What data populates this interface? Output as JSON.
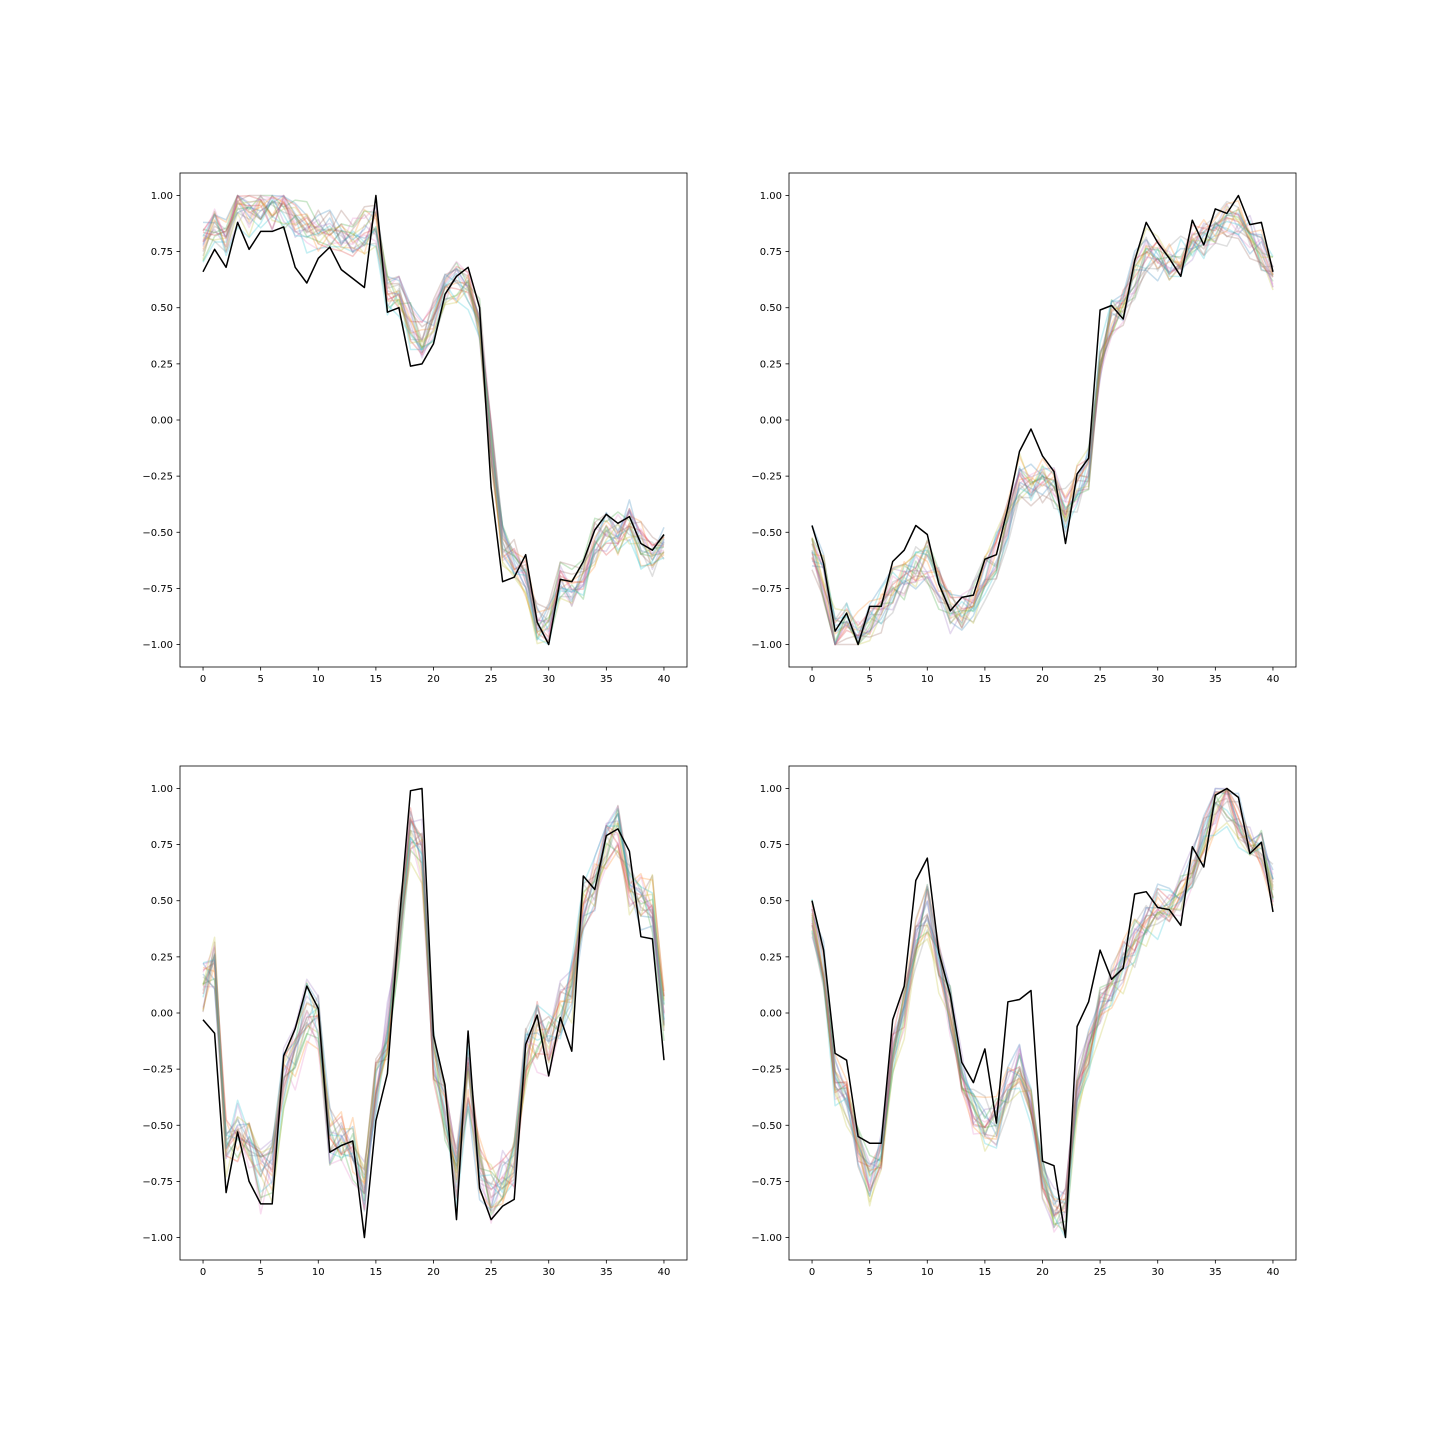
{
  "chart_data": [
    {
      "type": "line",
      "title": "",
      "xlabel": "",
      "ylabel": "",
      "xlim": [
        -2,
        42
      ],
      "ylim": [
        -1.1,
        1.1
      ],
      "xticks": [
        0,
        5,
        10,
        15,
        20,
        25,
        30,
        35,
        40
      ],
      "yticks": [
        -1.0,
        -0.75,
        -0.5,
        -0.25,
        0.0,
        0.25,
        0.5,
        0.75,
        1.0
      ],
      "xtick_labels": [
        "0",
        "5",
        "10",
        "15",
        "20",
        "25",
        "30",
        "35",
        "40"
      ],
      "ytick_labels": [
        "−1.00",
        "−0.75",
        "−0.50",
        "−0.25",
        "0.00",
        "0.25",
        "0.50",
        "0.75",
        "1.00"
      ],
      "grid": false,
      "legend": "none",
      "main_series_color": "#000000",
      "ensemble_count": 20,
      "ensemble_opacity": 0.25,
      "ensemble_spread": 0.08,
      "main_series": [
        0.66,
        0.76,
        0.68,
        0.88,
        0.76,
        0.84,
        0.84,
        0.86,
        0.68,
        0.61,
        0.72,
        0.77,
        0.67,
        0.63,
        0.59,
        1.0,
        0.48,
        0.5,
        0.24,
        0.25,
        0.34,
        0.56,
        0.64,
        0.68,
        0.5,
        -0.3,
        -0.72,
        -0.7,
        -0.6,
        -0.9,
        -1.0,
        -0.71,
        -0.72,
        -0.63,
        -0.49,
        -0.42,
        -0.46,
        -0.43,
        -0.55,
        -0.58,
        -0.51
      ],
      "ensemble_center": [
        0.8,
        0.88,
        0.8,
        0.96,
        0.92,
        0.94,
        0.95,
        0.95,
        0.9,
        0.86,
        0.84,
        0.84,
        0.83,
        0.8,
        0.84,
        0.88,
        0.58,
        0.55,
        0.42,
        0.35,
        0.46,
        0.6,
        0.62,
        0.6,
        0.45,
        -0.1,
        -0.55,
        -0.62,
        -0.7,
        -0.9,
        -0.9,
        -0.7,
        -0.75,
        -0.7,
        -0.55,
        -0.5,
        -0.5,
        -0.45,
        -0.55,
        -0.6,
        -0.55
      ]
    },
    {
      "type": "line",
      "title": "",
      "xlabel": "",
      "ylabel": "",
      "xlim": [
        -2,
        42
      ],
      "ylim": [
        -1.1,
        1.1
      ],
      "xticks": [
        0,
        5,
        10,
        15,
        20,
        25,
        30,
        35,
        40
      ],
      "yticks": [
        -1.0,
        -0.75,
        -0.5,
        -0.25,
        0.0,
        0.25,
        0.5,
        0.75,
        1.0
      ],
      "xtick_labels": [
        "0",
        "5",
        "10",
        "15",
        "20",
        "25",
        "30",
        "35",
        "40"
      ],
      "ytick_labels": [
        "−1.00",
        "−0.75",
        "−0.50",
        "−0.25",
        "0.00",
        "0.25",
        "0.50",
        "0.75",
        "1.00"
      ],
      "grid": false,
      "legend": "none",
      "main_series_color": "#000000",
      "ensemble_count": 20,
      "ensemble_opacity": 0.25,
      "ensemble_spread": 0.08,
      "main_series": [
        -0.47,
        -0.64,
        -0.94,
        -0.86,
        -1.0,
        -0.83,
        -0.83,
        -0.63,
        -0.58,
        -0.47,
        -0.51,
        -0.73,
        -0.85,
        -0.79,
        -0.78,
        -0.62,
        -0.6,
        -0.39,
        -0.14,
        -0.04,
        -0.16,
        -0.23,
        -0.55,
        -0.24,
        -0.17,
        0.49,
        0.51,
        0.45,
        0.71,
        0.88,
        0.79,
        0.72,
        0.64,
        0.89,
        0.78,
        0.94,
        0.92,
        1.0,
        0.87,
        0.88,
        0.66
      ],
      "ensemble_center": [
        -0.55,
        -0.7,
        -0.95,
        -0.9,
        -0.95,
        -0.9,
        -0.85,
        -0.75,
        -0.7,
        -0.65,
        -0.62,
        -0.75,
        -0.85,
        -0.85,
        -0.8,
        -0.7,
        -0.6,
        -0.45,
        -0.25,
        -0.3,
        -0.25,
        -0.3,
        -0.4,
        -0.3,
        -0.2,
        0.25,
        0.45,
        0.5,
        0.65,
        0.75,
        0.72,
        0.7,
        0.72,
        0.78,
        0.8,
        0.85,
        0.88,
        0.9,
        0.82,
        0.75,
        0.65
      ]
    },
    {
      "type": "line",
      "title": "",
      "xlabel": "",
      "ylabel": "",
      "xlim": [
        -2,
        42
      ],
      "ylim": [
        -1.1,
        1.1
      ],
      "xticks": [
        0,
        5,
        10,
        15,
        20,
        25,
        30,
        35,
        40
      ],
      "yticks": [
        -1.0,
        -0.75,
        -0.5,
        -0.25,
        0.0,
        0.25,
        0.5,
        0.75,
        1.0
      ],
      "xtick_labels": [
        "0",
        "5",
        "10",
        "15",
        "20",
        "25",
        "30",
        "35",
        "40"
      ],
      "ytick_labels": [
        "−1.00",
        "−0.75",
        "−0.50",
        "−0.25",
        "0.00",
        "0.25",
        "0.50",
        "0.75",
        "1.00"
      ],
      "grid": false,
      "legend": "none",
      "main_series_color": "#000000",
      "ensemble_count": 20,
      "ensemble_opacity": 0.25,
      "ensemble_spread": 0.12,
      "main_series": [
        -0.03,
        -0.09,
        -0.8,
        -0.53,
        -0.75,
        -0.85,
        -0.85,
        -0.19,
        -0.07,
        0.12,
        0.02,
        -0.62,
        -0.59,
        -0.57,
        -1.0,
        -0.48,
        -0.27,
        0.39,
        0.99,
        1.0,
        -0.1,
        -0.32,
        -0.92,
        -0.08,
        -0.78,
        -0.92,
        -0.86,
        -0.83,
        -0.14,
        -0.01,
        -0.28,
        -0.02,
        -0.17,
        0.61,
        0.55,
        0.79,
        0.82,
        0.72,
        0.34,
        0.33,
        -0.21
      ],
      "ensemble_center": [
        0.1,
        0.2,
        -0.6,
        -0.55,
        -0.6,
        -0.75,
        -0.7,
        -0.3,
        -0.2,
        0.0,
        -0.05,
        -0.55,
        -0.55,
        -0.6,
        -0.8,
        -0.35,
        -0.1,
        0.35,
        0.8,
        0.7,
        -0.2,
        -0.45,
        -0.75,
        -0.3,
        -0.7,
        -0.8,
        -0.75,
        -0.7,
        -0.2,
        -0.1,
        -0.15,
        0.0,
        0.1,
        0.45,
        0.55,
        0.75,
        0.8,
        0.55,
        0.5,
        0.5,
        0.0
      ]
    },
    {
      "type": "line",
      "title": "",
      "xlabel": "",
      "ylabel": "",
      "xlim": [
        -2,
        42
      ],
      "ylim": [
        -1.1,
        1.1
      ],
      "xticks": [
        0,
        5,
        10,
        15,
        20,
        25,
        30,
        35,
        40
      ],
      "yticks": [
        -1.0,
        -0.75,
        -0.5,
        -0.25,
        0.0,
        0.25,
        0.5,
        0.75,
        1.0
      ],
      "xtick_labels": [
        "0",
        "5",
        "10",
        "15",
        "20",
        "25",
        "30",
        "35",
        "40"
      ],
      "ytick_labels": [
        "−1.00",
        "−0.75",
        "−0.50",
        "−0.25",
        "0.00",
        "0.25",
        "0.50",
        "0.75",
        "1.00"
      ],
      "grid": false,
      "legend": "none",
      "main_series_color": "#000000",
      "ensemble_count": 20,
      "ensemble_opacity": 0.25,
      "ensemble_spread": 0.09,
      "main_series": [
        0.5,
        0.28,
        -0.18,
        -0.21,
        -0.55,
        -0.58,
        -0.58,
        -0.03,
        0.12,
        0.59,
        0.69,
        0.27,
        0.08,
        -0.22,
        -0.31,
        -0.16,
        -0.49,
        0.05,
        0.06,
        0.1,
        -0.66,
        -0.68,
        -1.0,
        -0.06,
        0.05,
        0.28,
        0.15,
        0.2,
        0.53,
        0.54,
        0.47,
        0.46,
        0.39,
        0.74,
        0.65,
        0.97,
        1.0,
        0.96,
        0.71,
        0.76,
        0.45
      ],
      "ensemble_center": [
        0.4,
        0.2,
        -0.3,
        -0.4,
        -0.6,
        -0.75,
        -0.65,
        -0.2,
        0.0,
        0.3,
        0.45,
        0.2,
        0.0,
        -0.3,
        -0.45,
        -0.5,
        -0.5,
        -0.35,
        -0.25,
        -0.4,
        -0.75,
        -0.9,
        -0.9,
        -0.35,
        -0.2,
        0.0,
        0.1,
        0.2,
        0.3,
        0.4,
        0.45,
        0.45,
        0.5,
        0.65,
        0.75,
        0.9,
        0.95,
        0.85,
        0.75,
        0.7,
        0.55
      ]
    }
  ],
  "ensemble_palette": [
    "#1f77b4",
    "#ff7f0e",
    "#2ca02c",
    "#d62728",
    "#9467bd",
    "#8c564b",
    "#e377c2",
    "#7f7f7f",
    "#bcbd22",
    "#17becf"
  ]
}
